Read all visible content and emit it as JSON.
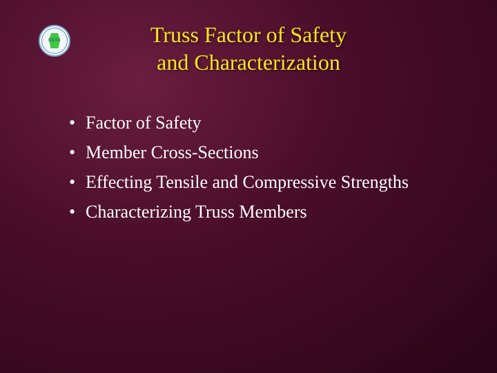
{
  "logo": {
    "org_abbrev": "CETA",
    "ring_text": "CALIFORNIA ENGINEERING & TECHNOLOGY ALLIANCE",
    "colors": {
      "ring": "#7aa8d4",
      "shape": "#3ec93e",
      "text": "#2a5a8a",
      "bg": "#ffffff"
    }
  },
  "title": {
    "line1": "Truss Factor of Safety",
    "line2": "and Characterization",
    "color": "#f5e51b",
    "fontsize": 32
  },
  "bullets": {
    "items": [
      "Factor of Safety",
      "Member Cross-Sections",
      "Effecting Tensile and Compressive Strengths",
      "Characterizing Truss Members"
    ],
    "color": "#ffffff",
    "fontsize": 26
  },
  "background": {
    "gradient_center": "#6b1e3f",
    "gradient_mid": "#4a0d2a",
    "gradient_edge": "#2a0518"
  }
}
